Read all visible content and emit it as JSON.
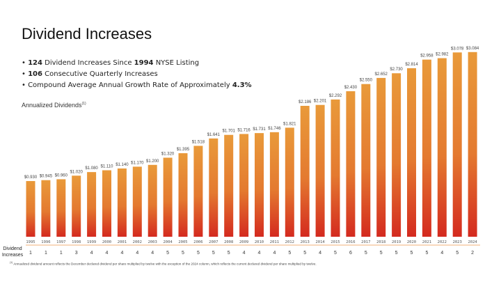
{
  "title": "Dividend Increases",
  "bullets": [
    {
      "bold1": "124",
      "text1": " Dividend Increases Since ",
      "bold2": "1994",
      "text2": " NYSE Listing"
    },
    {
      "bold1": "106",
      "text1": " Consecutive Quarterly Increases",
      "bold2": "",
      "text2": ""
    },
    {
      "bold1": "",
      "text1": "Compound Average Annual Growth Rate of Approximately ",
      "bold2": "4.3%",
      "text2": ""
    }
  ],
  "subtitle": "Annualized Dividends",
  "subtitle_note": "(1)",
  "row_label": "Dividend Increases",
  "footnote_mark": "(1)",
  "footnote": "Annualized dividend amount reflects the December declared dividend per share multiplied by twelve with the exception of the 2024 column, which reflects the current declared dividend per share multiplied by twelve.",
  "chart_data": {
    "type": "bar",
    "title": "Annualized Dividends",
    "categories": [
      "1995",
      "1996",
      "1997",
      "1998",
      "1999",
      "2000",
      "2001",
      "2002",
      "2003",
      "2004",
      "2005",
      "2006",
      "2007",
      "2008",
      "2009",
      "2010",
      "2011",
      "2012",
      "2013",
      "2014",
      "2015",
      "2016",
      "2017",
      "2018",
      "2019",
      "2020",
      "2021",
      "2022",
      "2023",
      "2024"
    ],
    "values": [
      0.93,
      0.945,
      0.96,
      1.02,
      1.08,
      1.11,
      1.14,
      1.17,
      1.2,
      1.32,
      1.395,
      1.518,
      1.641,
      1.701,
      1.716,
      1.731,
      1.746,
      1.821,
      2.186,
      2.201,
      2.292,
      2.43,
      2.55,
      2.652,
      2.73,
      2.814,
      2.958,
      2.982,
      3.078,
      3.084
    ],
    "value_labels": [
      "$0.930",
      "$0.945",
      "$0.960",
      "$1.020",
      "$1.080",
      "$1.110",
      "$1.140",
      "$1.170",
      "$1.200",
      "$1.320",
      "$1.395",
      "$1.518",
      "$1.641",
      "$1.701",
      "$1.716",
      "$1.731",
      "$1.746",
      "$1.821",
      "$2.186",
      "$2.201",
      "$2.292",
      "$2.430",
      "$2.550",
      "$2.652",
      "$2.730",
      "$2.814",
      "$2.958",
      "$2.982",
      "$3.078",
      "$3.084"
    ],
    "dividend_increases": [
      1,
      1,
      1,
      3,
      4,
      4,
      4,
      4,
      4,
      5,
      5,
      5,
      5,
      5,
      4,
      4,
      4,
      5,
      5,
      4,
      5,
      6,
      5,
      5,
      5,
      5,
      5,
      4,
      5,
      2
    ],
    "grid": false,
    "colors": {
      "bar_top": "#E99A3A",
      "bar_bottom": "#D42A1F",
      "separator": "#F0B27A"
    }
  }
}
